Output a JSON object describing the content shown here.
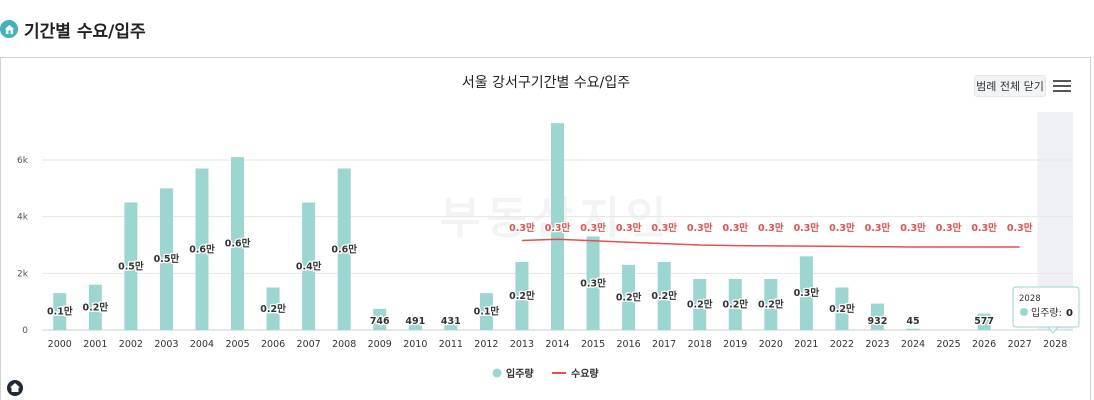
{
  "section": {
    "title": "기간별 수요/입주",
    "icon": "house-icon"
  },
  "toolbar": {
    "legend_toggle_label": "범례 전체 닫기",
    "menu_icon": "hamburger-icon"
  },
  "watermark": {
    "text": "부동산지인"
  },
  "colors": {
    "bars": "#9bd6d0",
    "line": "#e5504f",
    "highlight_band": "#eef0f6",
    "grid": "#e6e6e6"
  },
  "chart_data": {
    "type": "bar",
    "title": "서울 강서구기간별 수요/입주",
    "categories": [
      "2000",
      "2001",
      "2002",
      "2003",
      "2004",
      "2005",
      "2006",
      "2007",
      "2008",
      "2009",
      "2010",
      "2011",
      "2012",
      "2013",
      "2014",
      "2015",
      "2016",
      "2017",
      "2018",
      "2019",
      "2020",
      "2021",
      "2022",
      "2023",
      "2024",
      "2025",
      "2026",
      "2027",
      "2028"
    ],
    "y_ticks": [
      "0",
      "2k",
      "4k",
      "6k"
    ],
    "ylim": [
      0,
      7600
    ],
    "series": [
      {
        "name": "입주량",
        "type": "bar",
        "values": [
          1300,
          1600,
          4500,
          5000,
          5700,
          6100,
          1500,
          4500,
          5700,
          746,
          491,
          431,
          1300,
          2400,
          7300,
          3300,
          2300,
          2400,
          1800,
          1800,
          1800,
          2600,
          1500,
          932,
          45,
          0,
          577,
          0,
          0
        ],
        "labels": [
          "0.1만",
          "0.2만",
          "0.5만",
          "0.5만",
          "0.6만",
          "0.6만",
          "0.2만",
          "0.4만",
          "0.6만",
          "746",
          "491",
          "431",
          "0.1만",
          "0.2만",
          "",
          "0.3만",
          "0.2만",
          "0.2만",
          "0.2만",
          "0.2만",
          "0.2만",
          "0.3만",
          "0.2만",
          "932",
          "45",
          "",
          "577",
          "",
          ""
        ]
      },
      {
        "name": "수요량",
        "type": "line",
        "values": [
          null,
          null,
          null,
          null,
          null,
          null,
          null,
          null,
          null,
          null,
          null,
          null,
          null,
          3160,
          3200,
          3150,
          3100,
          3050,
          3000,
          2980,
          2970,
          2960,
          2950,
          2940,
          2930,
          2930,
          2930,
          2930,
          null
        ],
        "labels": [
          "",
          "",
          "",
          "",
          "",
          "",
          "",
          "",
          "",
          "",
          "",
          "",
          "",
          "0.3만",
          "0.3만",
          "0.3만",
          "0.3만",
          "0.3만",
          "0.3만",
          "0.3만",
          "0.3만",
          "0.3만",
          "0.3만",
          "0.3만",
          "0.3만",
          "0.3만",
          "0.3만",
          "0.3만",
          ""
        ]
      }
    ],
    "highlight_category": "2028",
    "tooltip": {
      "category": "2028",
      "series": "입주량",
      "label": "입주량:",
      "value": "0"
    },
    "legend": {
      "position": "bottom-center",
      "items": [
        "입주량",
        "수요량"
      ]
    },
    "grid": true
  }
}
